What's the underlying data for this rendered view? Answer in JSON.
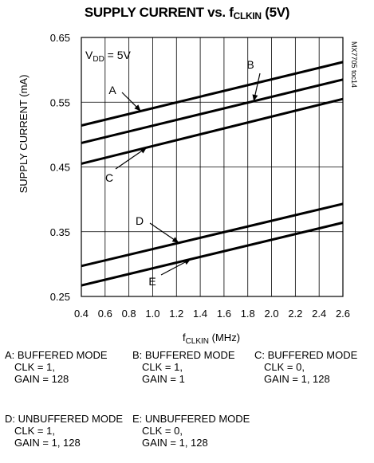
{
  "chart_data": {
    "type": "line",
    "title_main": "SUPPLY CURRENT vs. f",
    "title_sub": "CLKIN",
    "title_tail": " (5V)",
    "xlabel_main": "f",
    "xlabel_sub": "CLKIN",
    "xlabel_tail": " (MHz)",
    "ylabel": "SUPPLY CURRENT (mA)",
    "xlim": [
      0.4,
      2.6
    ],
    "ylim": [
      0.25,
      0.65
    ],
    "x_ticks": [
      "0.4",
      "0.6",
      "0.8",
      "1.0",
      "1.2",
      "1.4",
      "1.6",
      "1.8",
      "2.0",
      "2.2",
      "2.4",
      "2.6"
    ],
    "y_ticks": [
      "0.25",
      "0.35",
      "0.45",
      "0.55",
      "0.65"
    ],
    "grid": true,
    "condition_main": "V",
    "condition_sub": "DD",
    "condition_tail": " = 5V",
    "watermark": "MX7705 toc14",
    "series": [
      {
        "name": "A",
        "x": [
          0.4,
          2.6
        ],
        "y": [
          0.514,
          0.612
        ]
      },
      {
        "name": "B",
        "x": [
          0.4,
          2.6
        ],
        "y": [
          0.487,
          0.585
        ]
      },
      {
        "name": "C",
        "x": [
          0.4,
          2.6
        ],
        "y": [
          0.455,
          0.555
        ]
      },
      {
        "name": "D",
        "x": [
          0.4,
          2.6
        ],
        "y": [
          0.297,
          0.393
        ]
      },
      {
        "name": "E",
        "x": [
          0.4,
          2.6
        ],
        "y": [
          0.267,
          0.364
        ]
      }
    ]
  },
  "notes": [
    {
      "l1": "A: BUFFERED MODE",
      "l2": "CLK = 1,",
      "l3": "GAIN = 128"
    },
    {
      "l1": "B: BUFFERED MODE",
      "l2": "CLK = 1,",
      "l3": "GAIN = 1"
    },
    {
      "l1": "C: BUFFERED MODE",
      "l2": "CLK = 0,",
      "l3": "GAIN = 1, 128"
    },
    {
      "l1": "D: UNBUFFERED MODE",
      "l2": "CLK = 1,",
      "l3": "GAIN = 1, 128"
    },
    {
      "l1": "E: UNBUFFERED MODE",
      "l2": "CLK = 0,",
      "l3": "GAIN = 1, 128"
    }
  ]
}
